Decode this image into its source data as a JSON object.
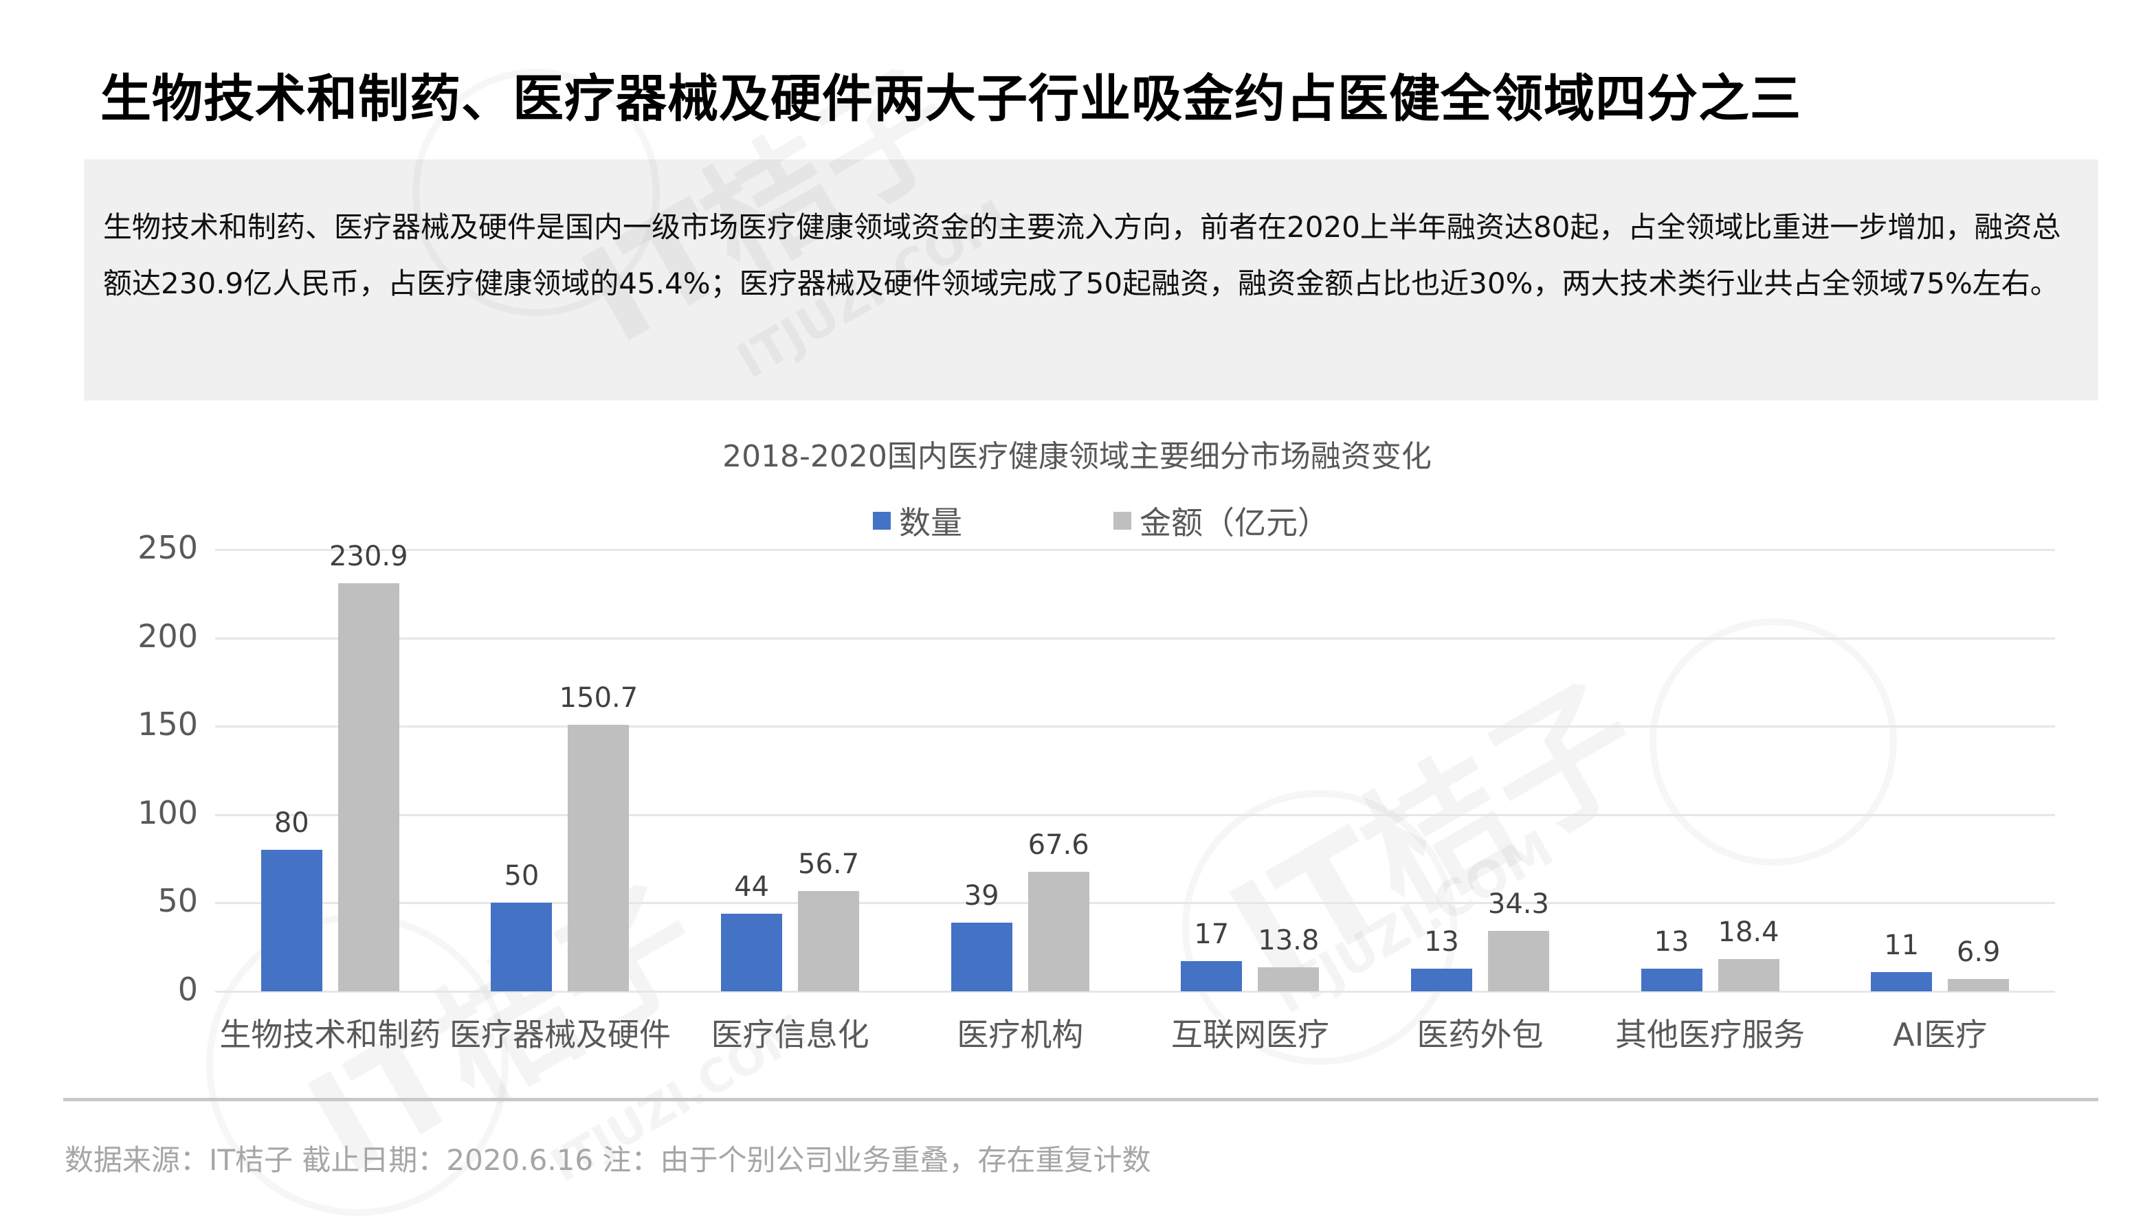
{
  "title": "生物技术和制药、医疗器械及硬件两大子行业吸金约占医健全领域四分之三",
  "description": "生物技术和制药、医疗器械及硬件是国内一级市场医疗健康领域资金的主要流入方向，前者在2020上半年融资达80起，占全领域比重进一步增加，融资总额达230.9亿人民币，占医疗健康领域的45.4%；医疗器械及硬件领域完成了50起融资，融资金额占比也近30%，两大技术类行业共占全领域75%左右。",
  "watermark": {
    "brand": "IT桔子",
    "domain": "ITJUZI.COM"
  },
  "footer": "数据来源：IT桔子  截止日期：2020.6.16  注：由于个别公司业务重叠，存在重复计数",
  "colors": {
    "count": "#4472C4",
    "amount": "#BFBFBF"
  },
  "chart_data": {
    "type": "bar",
    "title": "2018-2020国内医疗健康领域主要细分市场融资变化",
    "xlabel": "",
    "ylabel": "",
    "ylim": [
      0,
      250
    ],
    "yticks": [
      0,
      50,
      100,
      150,
      200,
      250
    ],
    "grid": true,
    "legend_position": "top",
    "categories": [
      "生物技术和制药",
      "医疗器械及硬件",
      "医疗信息化",
      "医疗机构",
      "互联网医疗",
      "医药外包",
      "其他医疗服务",
      "AI医疗"
    ],
    "series": [
      {
        "name": "数量",
        "color": "#4472C4",
        "values": [
          80,
          50,
          44,
          39,
          17,
          13,
          13,
          11
        ]
      },
      {
        "name": "金额（亿元）",
        "color": "#BFBFBF",
        "values": [
          230.9,
          150.7,
          56.7,
          67.6,
          13.8,
          34.3,
          18.4,
          6.9
        ]
      }
    ]
  }
}
